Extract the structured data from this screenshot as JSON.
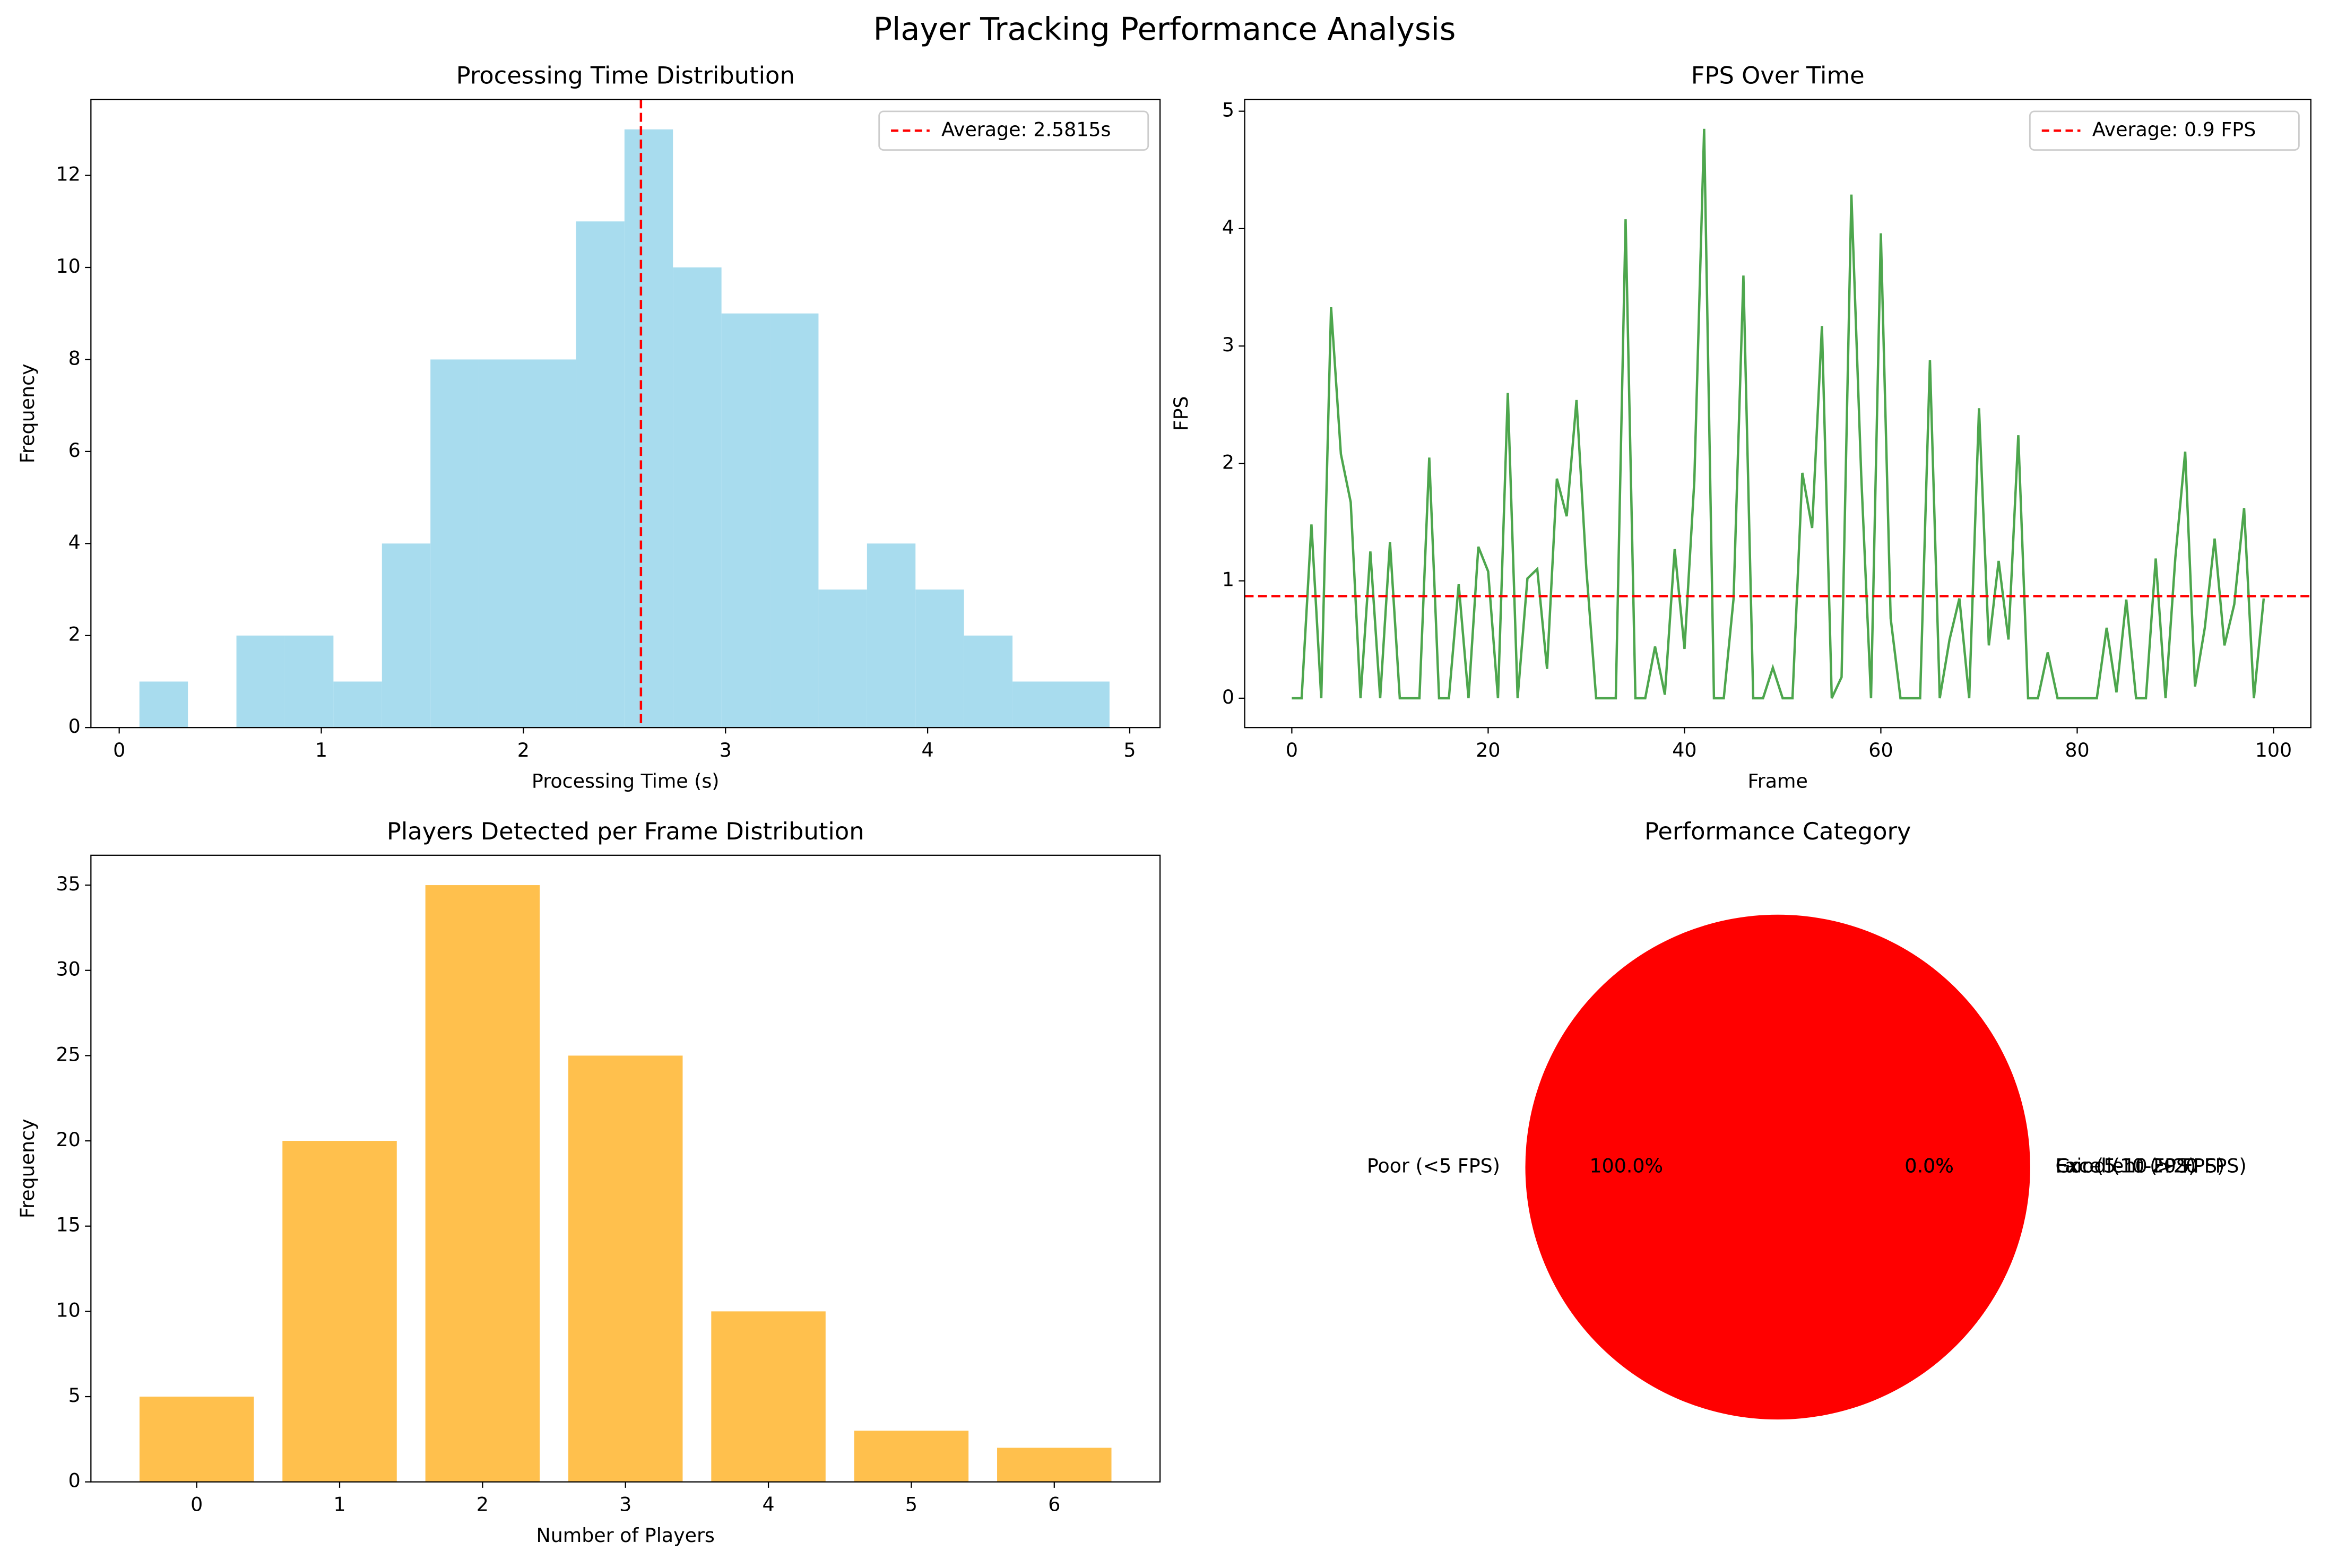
{
  "title": "Player Tracking Performance Analysis",
  "chart_data": [
    {
      "type": "histogram",
      "title": "Processing Time Distribution",
      "xlabel": "Processing Time (s)",
      "ylabel": "Frequency",
      "bins": [
        0.1,
        0.34,
        0.58,
        0.82,
        1.06,
        1.3,
        1.54,
        1.78,
        2.02,
        2.26,
        2.5,
        2.74,
        2.98,
        3.22,
        3.46,
        3.7,
        3.94,
        4.18,
        4.42,
        4.66,
        4.9
      ],
      "counts": [
        1,
        0,
        2,
        2,
        1,
        4,
        8,
        8,
        8,
        11,
        13,
        10,
        9,
        9,
        3,
        4,
        3,
        2,
        1,
        1
      ],
      "color": "#a8dcee",
      "xlim": [
        -0.14,
        5.15
      ],
      "xticks": [
        0,
        1,
        2,
        3,
        4,
        5
      ],
      "ylim": [
        0,
        13.65
      ],
      "yticks": [
        0,
        2,
        4,
        6,
        8,
        10,
        12
      ],
      "average": {
        "value": 2.5815,
        "label": "Average: 2.5815s",
        "color": "#ff0000"
      },
      "legend": "upper right"
    },
    {
      "type": "line",
      "title": "FPS Over Time",
      "xlabel": "Frame",
      "ylabel": "FPS",
      "x": [
        0,
        1,
        2,
        3,
        4,
        5,
        6,
        7,
        8,
        9,
        10,
        11,
        12,
        13,
        14,
        15,
        16,
        17,
        18,
        19,
        20,
        21,
        22,
        23,
        24,
        25,
        26,
        27,
        28,
        29,
        30,
        31,
        32,
        33,
        34,
        35,
        36,
        37,
        38,
        39,
        40,
        41,
        42,
        43,
        44,
        45,
        46,
        47,
        48,
        49,
        50,
        51,
        52,
        53,
        54,
        55,
        56,
        57,
        58,
        59,
        60,
        61,
        62,
        63,
        64,
        65,
        66,
        67,
        68,
        69,
        70,
        71,
        72,
        73,
        74,
        75,
        76,
        77,
        78,
        79,
        80,
        81,
        82,
        83,
        84,
        85,
        86,
        87,
        88,
        89,
        90,
        91,
        92,
        93,
        94,
        95,
        96,
        97,
        98,
        99
      ],
      "values": [
        0,
        0,
        1.48,
        0,
        3.33,
        2.08,
        1.67,
        0,
        1.25,
        0,
        1.33,
        0,
        0,
        0,
        2.05,
        0,
        0,
        0.97,
        0,
        1.29,
        1.08,
        0,
        2.6,
        0,
        1.02,
        1.1,
        0.25,
        1.87,
        1.55,
        2.54,
        1.1,
        0,
        0,
        0,
        4.08,
        0,
        0,
        0.44,
        0.03,
        1.27,
        0.42,
        1.85,
        4.85,
        0,
        0,
        0.85,
        3.6,
        0,
        0,
        0.26,
        0,
        0,
        1.92,
        1.45,
        3.17,
        0,
        0.18,
        4.29,
        1.9,
        0,
        3.96,
        0.68,
        0,
        0,
        0,
        2.88,
        0,
        0.5,
        0.85,
        0,
        2.47,
        0.45,
        1.17,
        0.5,
        2.24,
        0,
        0,
        0.39,
        0,
        0,
        0,
        0,
        0,
        0.6,
        0.05,
        0.84,
        0,
        0,
        1.19,
        0,
        1.2,
        2.1,
        0.1,
        0.6,
        1.36,
        0.45,
        0.8,
        1.62,
        0,
        0.85
      ],
      "color": "#4da64d",
      "xlim": [
        -4.8,
        103.8
      ],
      "xticks": [
        0,
        20,
        40,
        60,
        80,
        100
      ],
      "ylim": [
        -0.25,
        5.1
      ],
      "yticks": [
        0,
        1,
        2,
        3,
        4,
        5
      ],
      "average": {
        "value": 0.87,
        "label": "Average: 0.9 FPS",
        "color": "#ff0000"
      },
      "legend": "upper right"
    },
    {
      "type": "bar",
      "title": "Players Detected per Frame Distribution",
      "xlabel": "Number of Players",
      "ylabel": "Frequency",
      "categories": [
        "0",
        "1",
        "2",
        "3",
        "4",
        "5",
        "6"
      ],
      "values": [
        5,
        20,
        35,
        25,
        10,
        3,
        2
      ],
      "color": "#ffc04d",
      "xlim": [
        -0.74,
        6.74
      ],
      "ylim": [
        0,
        36.75
      ],
      "yticks": [
        0,
        5,
        10,
        15,
        20,
        25,
        30,
        35
      ]
    },
    {
      "type": "pie",
      "title": "Performance Category",
      "categories": [
        "Poor (<5 FPS)",
        "Fair (5-10 FPS)",
        "Good (10-20 FPS)",
        "Excellent (>20 FPS)"
      ],
      "values": [
        100,
        0,
        0,
        0
      ],
      "value_labels": [
        "100.0%",
        "0.0%",
        "0.0%",
        "0.0%"
      ],
      "colors": [
        "#ff0000",
        "#ffa500",
        "#ffff00",
        "#008000"
      ]
    }
  ]
}
